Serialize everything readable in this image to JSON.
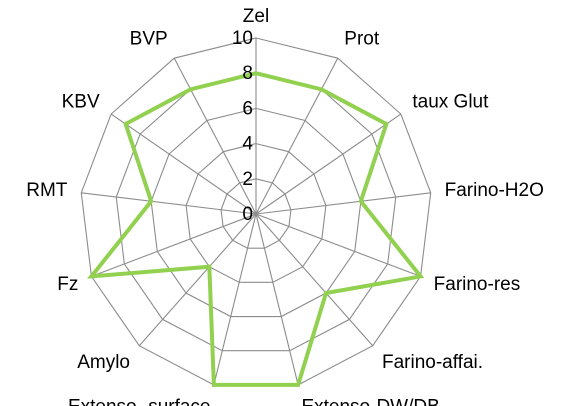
{
  "chart_data": {
    "type": "radar",
    "axes": [
      "Zel",
      "Prot",
      "taux Glut",
      "Farino-H2O",
      "Farino-res",
      "Farino-affai.",
      "Extenso-DW/DB",
      "Extenso- surface",
      "Amylo",
      "Fz",
      "RMT",
      "KBV",
      "BVP"
    ],
    "ticks": [
      "0",
      "2",
      "4",
      "6",
      "8",
      "10"
    ],
    "range": [
      0,
      10
    ],
    "grid": true,
    "legend": "none",
    "series": [
      {
        "color": "#92d050",
        "values": [
          8,
          8,
          9,
          6,
          10,
          6,
          10,
          10,
          4,
          10,
          6,
          9,
          8
        ]
      }
    ]
  }
}
